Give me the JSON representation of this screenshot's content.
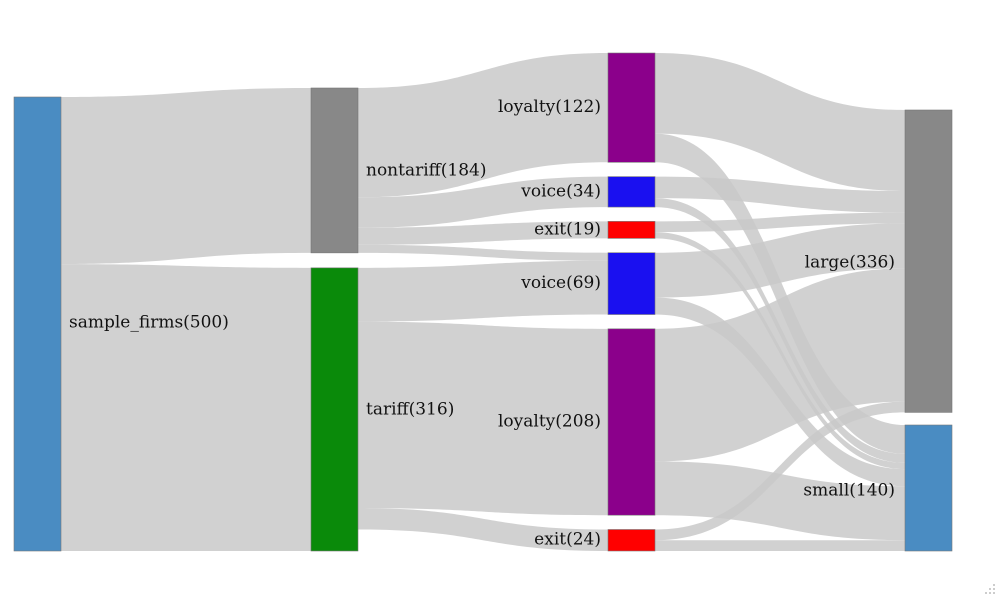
{
  "chart_data": {
    "type": "sankey",
    "columns": [
      [
        "sample_firms"
      ],
      [
        "nontariff",
        "tariff"
      ],
      [
        "nt_loyalty",
        "nt_voice",
        "nt_exit",
        "t_voice",
        "t_loyalty",
        "t_exit"
      ],
      [
        "large",
        "small"
      ]
    ],
    "nodes": [
      {
        "id": "sample_firms",
        "label": "sample_firms(500)",
        "value": 500,
        "color": "#4a8cc2"
      },
      {
        "id": "nontariff",
        "label": "nontariff(184)",
        "value": 184,
        "color": "#888888"
      },
      {
        "id": "tariff",
        "label": "tariff(316)",
        "value": 316,
        "color": "#0a8a0a"
      },
      {
        "id": "nt_loyalty",
        "label": "loyalty(122)",
        "value": 122,
        "color": "#8b008b"
      },
      {
        "id": "nt_voice",
        "label": "voice(34)",
        "value": 34,
        "color": "#1a10f0"
      },
      {
        "id": "nt_exit",
        "label": "exit(19)",
        "value": 19,
        "color": "#ff0000"
      },
      {
        "id": "t_voice",
        "label": "voice(69)",
        "value": 69,
        "color": "#1a10f0"
      },
      {
        "id": "t_loyalty",
        "label": "loyalty(208)",
        "value": 208,
        "color": "#8b008b"
      },
      {
        "id": "t_exit",
        "label": "exit(24)",
        "value": 24,
        "color": "#ff0000"
      },
      {
        "id": "large",
        "label": "large(336)",
        "value": 336,
        "color": "#888888"
      },
      {
        "id": "small",
        "label": "small(140)",
        "value": 140,
        "color": "#4a8cc2"
      }
    ],
    "links": [
      {
        "source": "sample_firms",
        "target": "nontariff",
        "value": 184
      },
      {
        "source": "sample_firms",
        "target": "tariff",
        "value": 316
      },
      {
        "source": "nontariff",
        "target": "nt_loyalty",
        "value": 122
      },
      {
        "source": "nontariff",
        "target": "nt_voice",
        "value": 34
      },
      {
        "source": "nontariff",
        "target": "nt_exit",
        "value": 19
      },
      {
        "source": "nontariff",
        "target": "t_voice",
        "value": 9
      },
      {
        "source": "tariff",
        "target": "t_voice",
        "value": 60
      },
      {
        "source": "tariff",
        "target": "t_loyalty",
        "value": 208
      },
      {
        "source": "tariff",
        "target": "t_exit",
        "value": 24
      },
      {
        "source": "nt_loyalty",
        "target": "large",
        "value": 90
      },
      {
        "source": "nt_loyalty",
        "target": "small",
        "value": 32
      },
      {
        "source": "nt_voice",
        "target": "large",
        "value": 24
      },
      {
        "source": "nt_voice",
        "target": "small",
        "value": 10
      },
      {
        "source": "nt_exit",
        "target": "large",
        "value": 12
      },
      {
        "source": "nt_exit",
        "target": "small",
        "value": 7
      },
      {
        "source": "t_voice",
        "target": "large",
        "value": 50
      },
      {
        "source": "t_voice",
        "target": "small",
        "value": 19
      },
      {
        "source": "t_loyalty",
        "target": "large",
        "value": 148
      },
      {
        "source": "t_loyalty",
        "target": "small",
        "value": 60
      },
      {
        "source": "t_exit",
        "target": "large",
        "value": 12
      },
      {
        "source": "t_exit",
        "target": "small",
        "value": 12
      }
    ]
  }
}
